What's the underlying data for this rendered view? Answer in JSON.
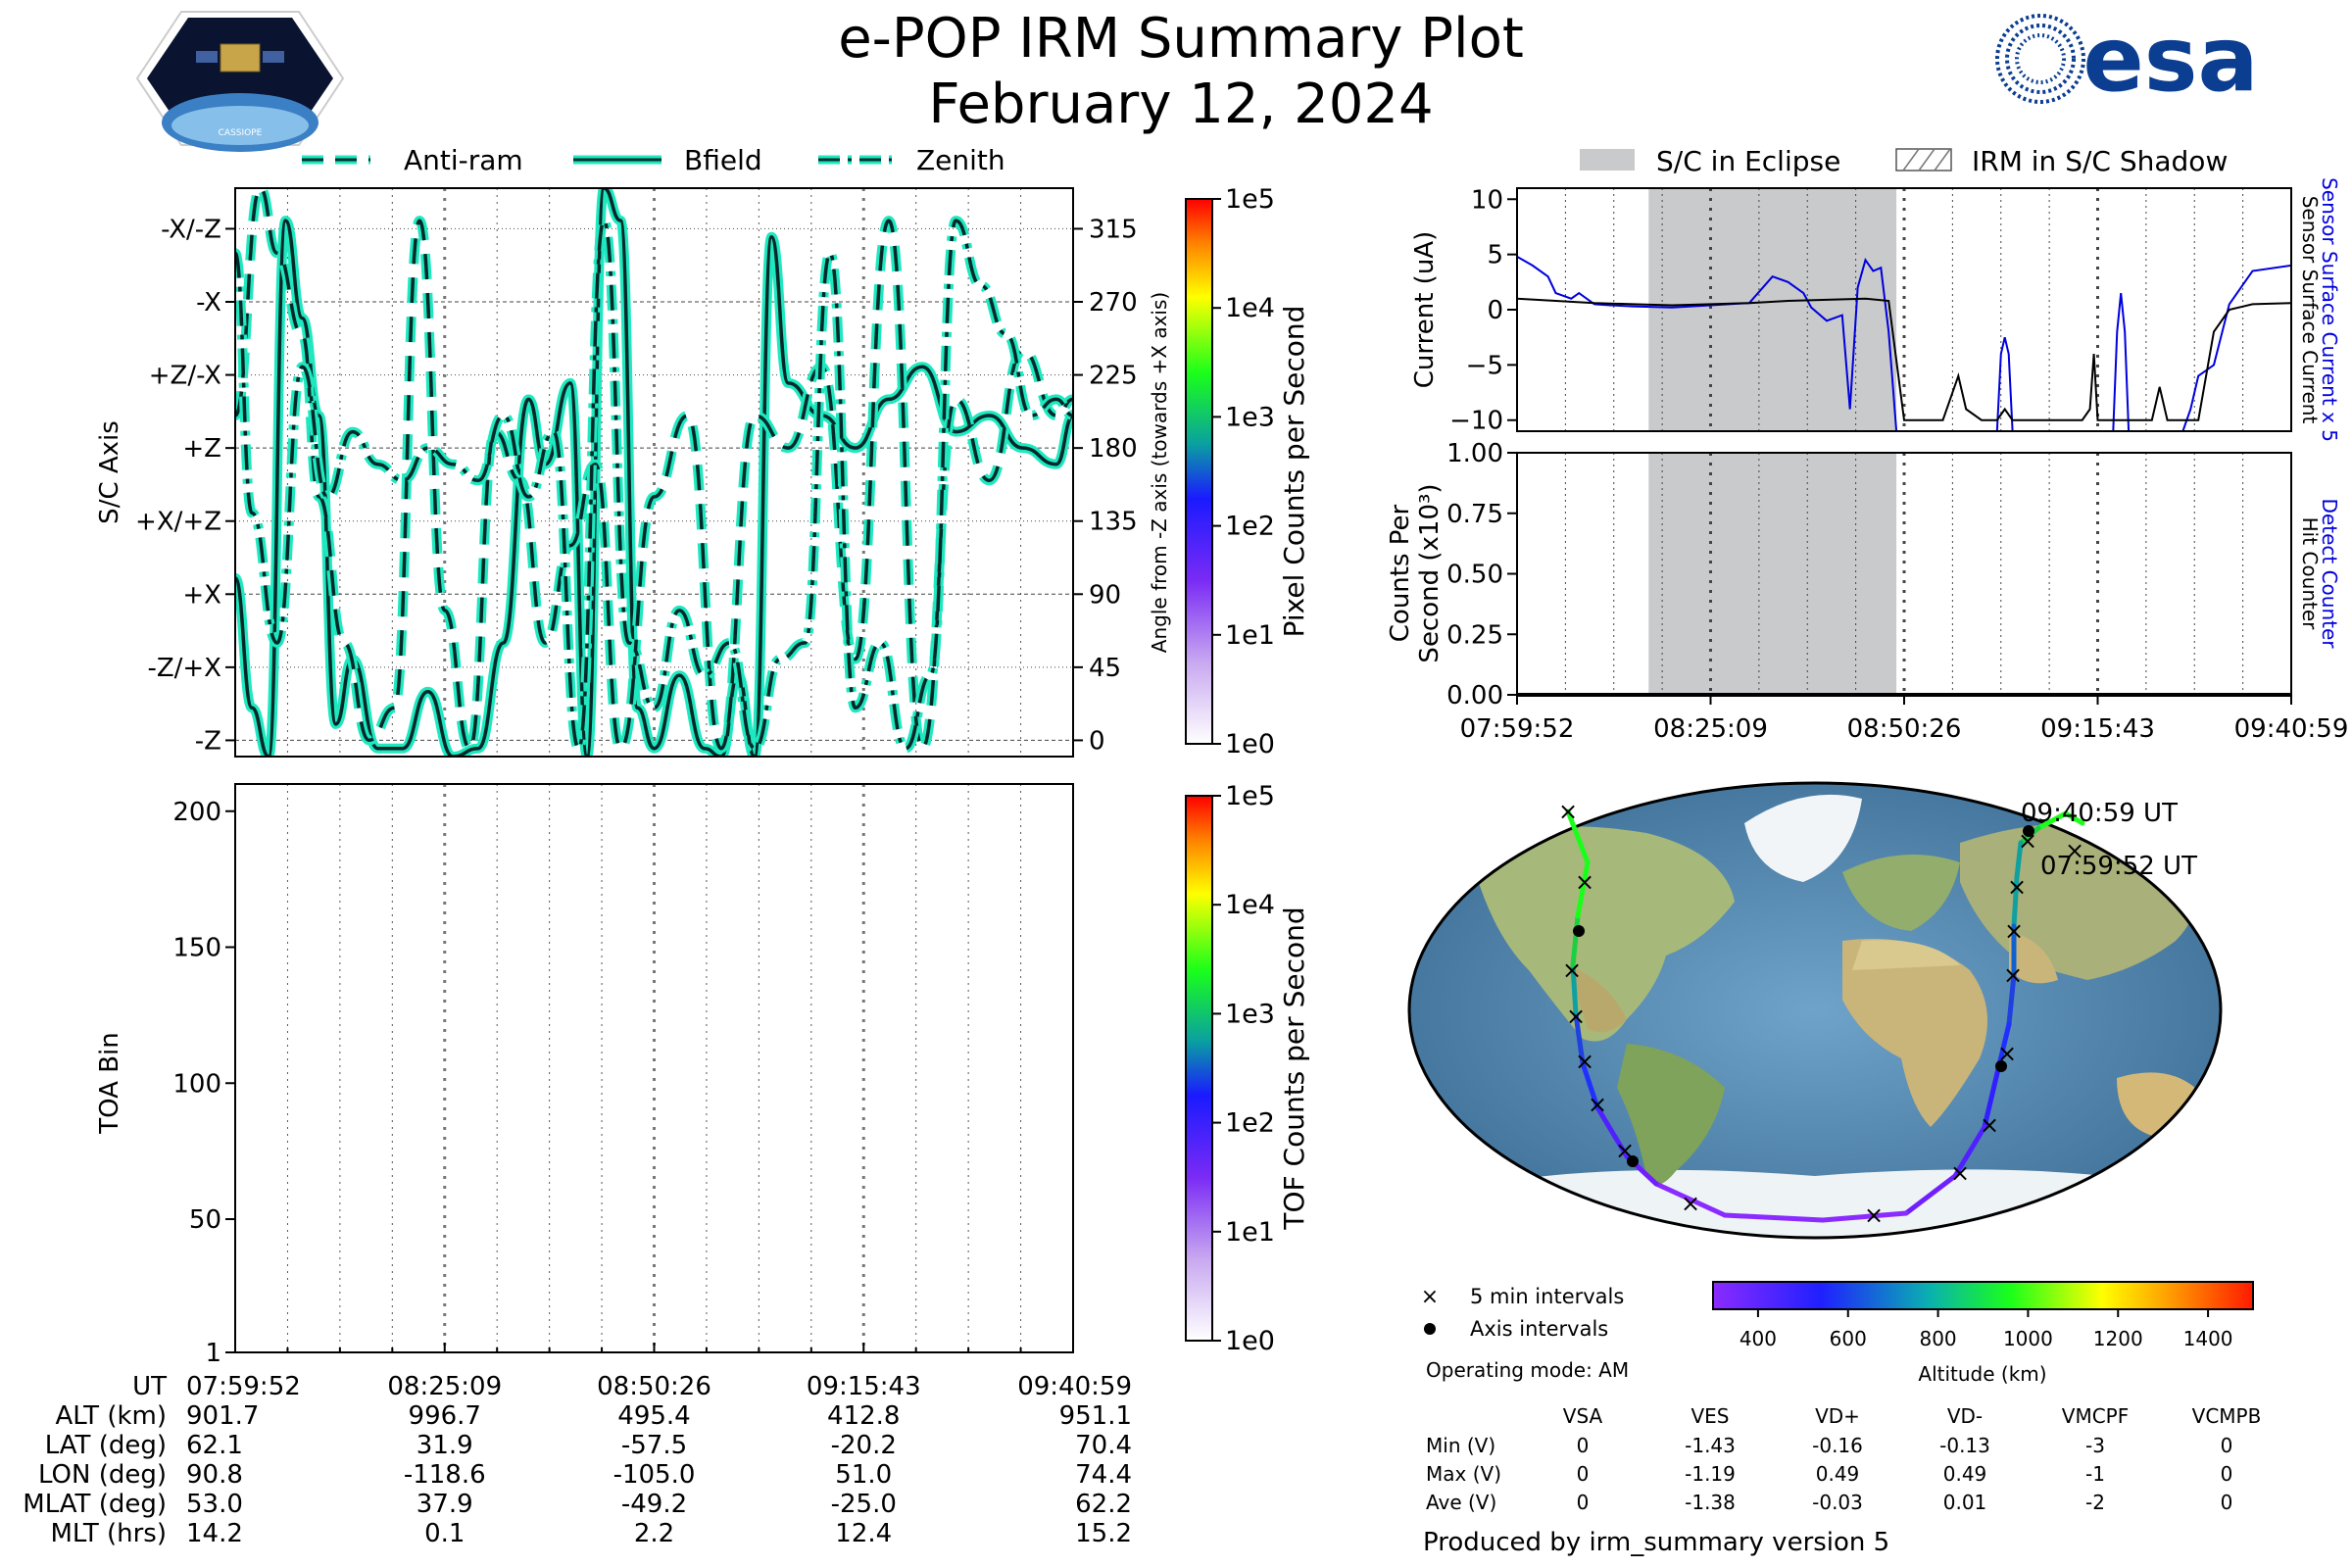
{
  "header": {
    "title": "e-POP IRM Summary Plot",
    "date": "February 12, 2024",
    "mission_logo_label": "CASSIOPE",
    "agency_logo_text": "esa",
    "agency_logo_color": "#0b3d91"
  },
  "legends": {
    "direction_lines": [
      "Anti-ram",
      "Bfield",
      "Zenith"
    ],
    "current_panel": [
      "S/C in Eclipse",
      "IRM in S/C Shadow"
    ],
    "map": [
      "5 min intervals",
      "Axis intervals"
    ]
  },
  "time_axis": {
    "start": "07:59:52",
    "end": "09:40:59",
    "ticks": [
      "07:59:52",
      "08:25:09",
      "08:50:26",
      "09:15:43",
      "09:40:59"
    ]
  },
  "axis_panel": {
    "ylabel": "S/C Axis",
    "y2label": "Angle from -Z axis (towards +X axis)",
    "axis_labels": [
      "-Z",
      "-Z/+X",
      "+X",
      "+X/+Z",
      "+Z",
      "+Z/-X",
      "-X",
      "-X/-Z"
    ],
    "axis_angles_deg": [
      0,
      45,
      90,
      135,
      180,
      225,
      270,
      315
    ],
    "angle_ticks": [
      "0",
      "45",
      "90",
      "135",
      "180",
      "225",
      "270",
      "315"
    ],
    "colorbar_label": "Pixel Counts per Second",
    "colorbar_ticks": [
      "1e0",
      "1e1",
      "1e2",
      "1e3",
      "1e4",
      "1e5"
    ],
    "line_color": "#1fe8c0"
  },
  "toa_panel": {
    "ylabel": "TOA Bin",
    "yticks": [
      "1",
      "50",
      "100",
      "150",
      "200"
    ],
    "ylim": [
      1,
      210
    ],
    "colorbar_label": "TOF Counts per Second",
    "colorbar_ticks": [
      "1e0",
      "1e1",
      "1e2",
      "1e3",
      "1e4",
      "1e5"
    ]
  },
  "current_panel": {
    "ylabel": "Current (uA)",
    "right_label_blue": "Sensor Surface Current x 5",
    "right_label_black": "Sensor Surface Current",
    "yticks": [
      "10",
      "5",
      "0",
      "−5",
      "−10"
    ],
    "ylim": [
      -11,
      11
    ],
    "blue_color": "#0000dd"
  },
  "counts_panel": {
    "ylabel_line1": "Counts Per",
    "ylabel_line2": "Second (x10³)",
    "right_label_blue": "Detect Counter",
    "right_label_black": "Hit Counter",
    "yticks": [
      "1.00",
      "0.75",
      "0.50",
      "0.25",
      "0.00"
    ],
    "ylim": [
      0,
      1
    ]
  },
  "map": {
    "end_label": "09:40:59 UT",
    "start_label": "07:59:52 UT",
    "altitude_label": "Altitude (km)",
    "altitude_ticks": [
      "400",
      "600",
      "800",
      "1000",
      "1200",
      "1400"
    ],
    "operating_mode": "Operating mode: AM"
  },
  "voltages": {
    "headers": [
      "VSA",
      "VES",
      "VD+",
      "VD-",
      "VMCPF",
      "VCMPB"
    ],
    "rows": [
      {
        "label": "Min (V)",
        "values": [
          "0",
          "-1.43",
          "-0.16",
          "-0.13",
          "-3",
          "0"
        ]
      },
      {
        "label": "Max (V)",
        "values": [
          "0",
          "-1.19",
          "0.49",
          "0.49",
          "-1",
          "0"
        ]
      },
      {
        "label": "Ave (V)",
        "values": [
          "0",
          "-1.38",
          "-0.03",
          "0.01",
          "-2",
          "0"
        ]
      }
    ]
  },
  "footer": "Produced by irm_summary version 5",
  "ephemeris": {
    "rows": [
      {
        "label": "UT",
        "values": [
          "07:59:52",
          "08:25:09",
          "08:50:26",
          "09:15:43",
          "09:40:59"
        ]
      },
      {
        "label": "ALT (km)",
        "values": [
          "901.7",
          "996.7",
          "495.4",
          "412.8",
          "951.1"
        ]
      },
      {
        "label": "LAT (deg)",
        "values": [
          "62.1",
          "31.9",
          "-57.5",
          "-20.2",
          "70.4"
        ]
      },
      {
        "label": "LON (deg)",
        "values": [
          "90.8",
          "-118.6",
          "-105.0",
          "51.0",
          "74.4"
        ]
      },
      {
        "label": "MLAT (deg)",
        "values": [
          "53.0",
          "37.9",
          "-49.2",
          "-25.0",
          "62.2"
        ]
      },
      {
        "label": "MLT (hrs)",
        "values": [
          "14.2",
          "0.1",
          "2.2",
          "12.4",
          "15.2"
        ]
      }
    ]
  },
  "chart_data": [
    {
      "type": "line",
      "panel": "current",
      "x_range": [
        "07:59:52",
        "09:40:59"
      ],
      "ylim": [
        -11,
        11
      ],
      "eclipse_fraction": [
        0.17,
        0.49
      ],
      "series": [
        {
          "name": "Sensor Surface Current x 5",
          "color": "#0000dd",
          "x": [
            0.0,
            0.02,
            0.04,
            0.05,
            0.07,
            0.08,
            0.1,
            0.12,
            0.15,
            0.2,
            0.25,
            0.3,
            0.33,
            0.35,
            0.37,
            0.38,
            0.4,
            0.42,
            0.43,
            0.44,
            0.45,
            0.46,
            0.47,
            0.48,
            0.49,
            0.5
          ],
          "y": [
            4.8,
            4.0,
            3.0,
            1.5,
            1.0,
            1.5,
            0.5,
            0.4,
            0.3,
            0.2,
            0.4,
            0.6,
            3.0,
            2.5,
            1.5,
            0.2,
            -1.0,
            -0.5,
            -9.0,
            2.0,
            4.5,
            3.5,
            3.8,
            -2.0,
            -11,
            -11
          ]
        },
        {
          "name": "Sensor Surface Current x 5 (late)",
          "color": "#0000dd",
          "x": [
            0.62,
            0.625,
            0.63,
            0.635,
            0.64,
            0.77,
            0.775,
            0.78,
            0.785,
            0.79,
            0.86,
            0.87,
            0.88,
            0.9,
            0.92,
            0.95,
            1.0
          ],
          "y": [
            -11,
            -4.0,
            -2.5,
            -4.0,
            -11,
            -11,
            -2.0,
            1.5,
            -2.0,
            -11,
            -11,
            -9.0,
            -6.0,
            -5.0,
            0.5,
            3.5,
            4.0
          ]
        },
        {
          "name": "Sensor Surface Current",
          "color": "#000000",
          "x": [
            0.0,
            0.05,
            0.1,
            0.15,
            0.2,
            0.25,
            0.3,
            0.35,
            0.4,
            0.45,
            0.48,
            0.5,
            0.52,
            0.55,
            0.56,
            0.57,
            0.58,
            0.6,
            0.62,
            0.63,
            0.64,
            0.66,
            0.7,
            0.73,
            0.74,
            0.745,
            0.75,
            0.77,
            0.78,
            0.79,
            0.82,
            0.83,
            0.84,
            0.86,
            0.87,
            0.88,
            0.9,
            0.92,
            0.95,
            1.0
          ],
          "y": [
            1.0,
            0.8,
            0.6,
            0.5,
            0.4,
            0.5,
            0.6,
            0.8,
            0.9,
            1.0,
            0.8,
            -10,
            -10,
            -10,
            -8,
            -6,
            -9,
            -10,
            -10,
            -9,
            -10,
            -10,
            -10,
            -10,
            -9,
            -4,
            -10,
            -10,
            -10,
            -10,
            -10,
            -7,
            -10,
            -10,
            -10,
            -10,
            -2,
            0.0,
            0.5,
            0.6
          ]
        }
      ]
    },
    {
      "type": "line",
      "panel": "counts",
      "ylim": [
        0,
        1
      ],
      "series": [
        {
          "name": "Detect Counter",
          "color": "#0000dd",
          "x": [
            0,
            1
          ],
          "y": [
            0,
            0
          ]
        },
        {
          "name": "Hit Counter",
          "color": "#000000",
          "x": [
            0,
            1
          ],
          "y": [
            0,
            0
          ]
        }
      ]
    },
    {
      "type": "line",
      "panel": "axis-angles",
      "ylim": [
        -10,
        340
      ],
      "series": [
        {
          "name": "Bfield",
          "style": "solid",
          "x": [
            0.0,
            0.02,
            0.04,
            0.06,
            0.08,
            0.1,
            0.12,
            0.14,
            0.17,
            0.2,
            0.23,
            0.26,
            0.29,
            0.32,
            0.35,
            0.37,
            0.4,
            0.42,
            0.44,
            0.46,
            0.48,
            0.5,
            0.53,
            0.56,
            0.58,
            0.6,
            0.62,
            0.64,
            0.66,
            0.7,
            0.74,
            0.78,
            0.82,
            0.86,
            0.9,
            0.94,
            0.98,
            1.0
          ],
          "y": [
            100,
            20,
            -10,
            320,
            260,
            200,
            10,
            50,
            -5,
            -5,
            30,
            -10,
            -5,
            60,
            210,
            170,
            220,
            -10,
            340,
            320,
            20,
            -5,
            40,
            -5,
            -10,
            40,
            -10,
            310,
            220,
            200,
            180,
            210,
            230,
            190,
            200,
            180,
            170,
            200
          ]
        },
        {
          "name": "Anti-ram",
          "style": "dashed",
          "x": [
            0.0,
            0.03,
            0.05,
            0.08,
            0.1,
            0.13,
            0.16,
            0.19,
            0.22,
            0.25,
            0.28,
            0.31,
            0.34,
            0.37,
            0.4,
            0.43,
            0.46,
            0.5,
            0.54,
            0.58,
            0.62,
            0.66,
            0.7,
            0.74,
            0.78,
            0.82,
            0.86,
            0.9,
            0.94,
            0.98,
            1.0
          ],
          "y": [
            200,
            340,
            300,
            250,
            150,
            60,
            0,
            20,
            320,
            80,
            -5,
            190,
            160,
            60,
            120,
            170,
            -5,
            150,
            200,
            -5,
            200,
            180,
            230,
            50,
            320,
            -5,
            210,
            160,
            240,
            200,
            210
          ]
        },
        {
          "name": "Zenith",
          "style": "dashdot",
          "x": [
            0.0,
            0.02,
            0.05,
            0.08,
            0.11,
            0.14,
            0.17,
            0.2,
            0.23,
            0.26,
            0.29,
            0.32,
            0.35,
            0.38,
            0.41,
            0.44,
            0.47,
            0.5,
            0.53,
            0.56,
            0.59,
            0.62,
            0.65,
            0.68,
            0.71,
            0.74,
            0.77,
            0.8,
            0.83,
            0.86,
            0.89,
            0.92,
            0.95,
            0.98,
            1.0
          ],
          "y": [
            300,
            140,
            60,
            230,
            150,
            190,
            170,
            160,
            180,
            170,
            160,
            200,
            150,
            190,
            -5,
            320,
            60,
            20,
            80,
            40,
            60,
            -5,
            50,
            60,
            300,
            20,
            60,
            -5,
            40,
            320,
            280,
            250,
            200,
            210,
            200
          ]
        }
      ]
    },
    {
      "type": "heatmap",
      "panel": "toa",
      "ylim": [
        1,
        210
      ],
      "values": []
    }
  ]
}
